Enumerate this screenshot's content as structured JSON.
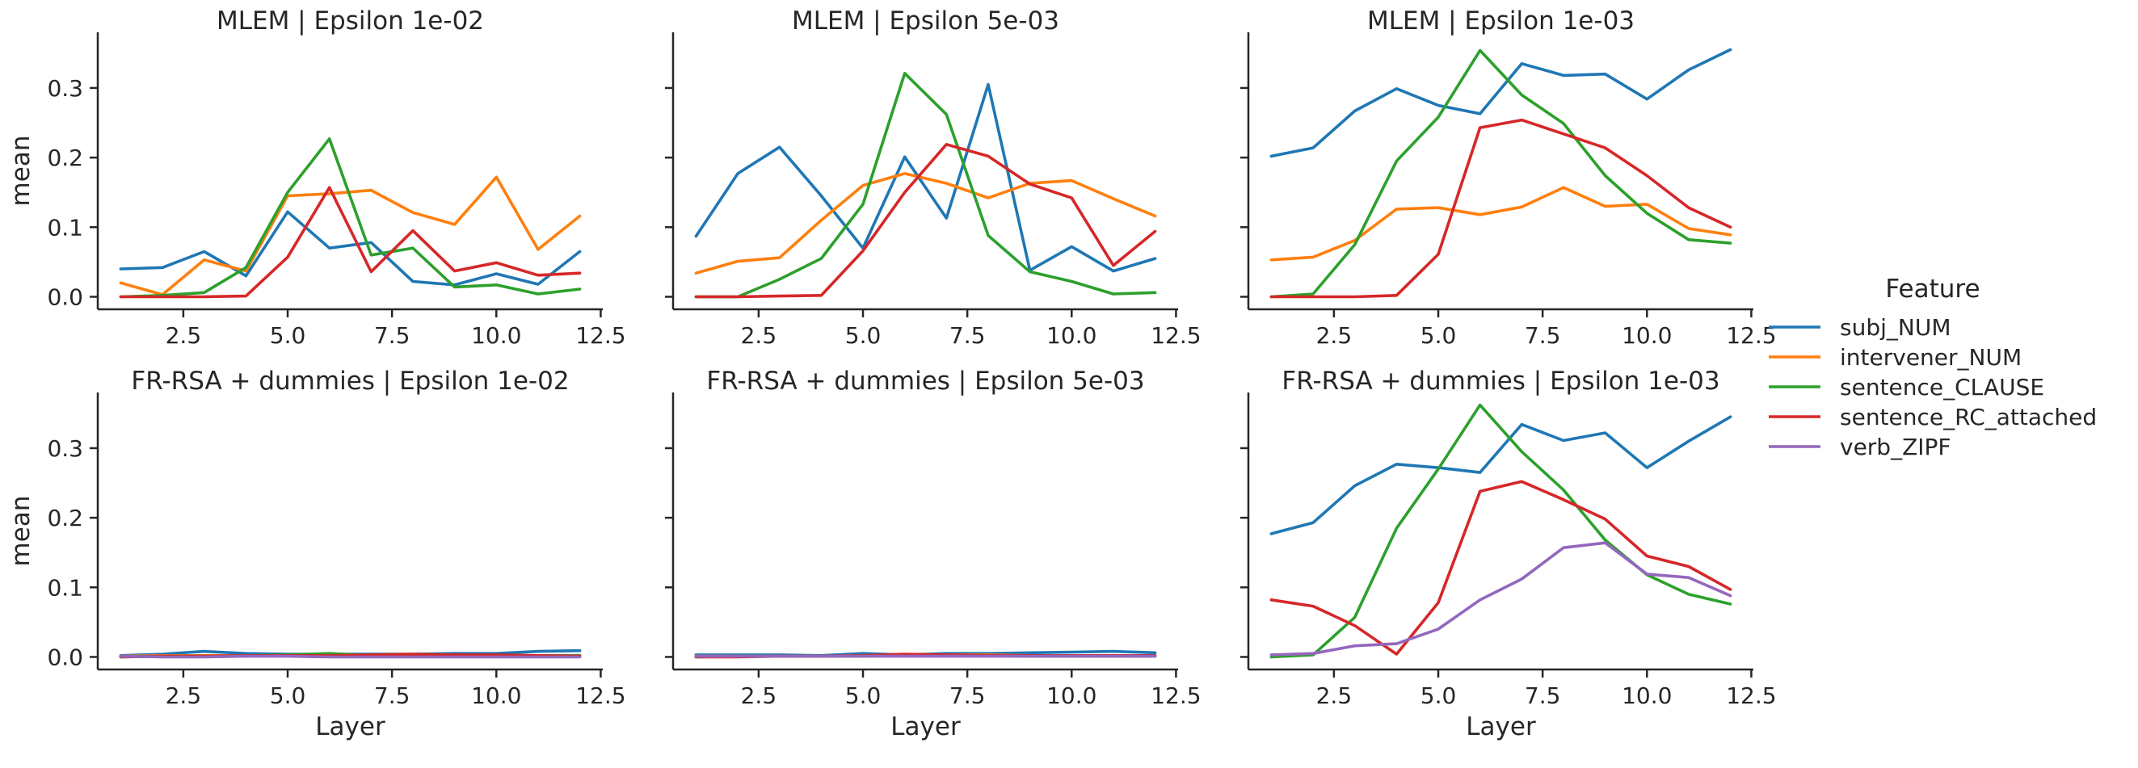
{
  "legend": {
    "title": "Feature",
    "items": [
      {
        "name": "subj_NUM",
        "color": "#1f77b4"
      },
      {
        "name": "intervener_NUM",
        "color": "#ff7f0e"
      },
      {
        "name": "sentence_CLAUSE",
        "color": "#2ca02c"
      },
      {
        "name": "sentence_RC_attached",
        "color": "#d62728"
      },
      {
        "name": "verb_ZIPF",
        "color": "#9467bd"
      }
    ]
  },
  "chart_data": [
    {
      "type": "line",
      "row": 0,
      "col": 0,
      "title": "MLEM | Epsilon 1e-02",
      "xlabel": "",
      "ylabel": "mean",
      "xlim": [
        0.45,
        12.55
      ],
      "ylim": [
        -0.018,
        0.38
      ],
      "xticks": [
        "2.5",
        "5.0",
        "7.5",
        "10.0",
        "12.5"
      ],
      "yticks": [
        "0.0",
        "0.1",
        "0.2",
        "0.3"
      ],
      "x": [
        1,
        2,
        3,
        4,
        5,
        6,
        7,
        8,
        9,
        10,
        11,
        12
      ],
      "series": [
        {
          "name": "subj_NUM",
          "color": "#1f77b4",
          "values": [
            0.04,
            0.042,
            0.065,
            0.03,
            0.122,
            0.07,
            0.078,
            0.022,
            0.017,
            0.033,
            0.018,
            0.065
          ]
        },
        {
          "name": "intervener_NUM",
          "color": "#ff7f0e",
          "values": [
            0.02,
            0.003,
            0.053,
            0.037,
            0.145,
            0.148,
            0.153,
            0.121,
            0.104,
            0.172,
            0.068,
            0.116
          ]
        },
        {
          "name": "sentence_CLAUSE",
          "color": "#2ca02c",
          "values": [
            0.0,
            0.002,
            0.006,
            0.042,
            0.15,
            0.227,
            0.06,
            0.07,
            0.014,
            0.017,
            0.004,
            0.011
          ]
        },
        {
          "name": "sentence_RC_attached",
          "color": "#d62728",
          "values": [
            0.0,
            0.0,
            0.0,
            0.001,
            0.057,
            0.157,
            0.036,
            0.095,
            0.037,
            0.049,
            0.031,
            0.034
          ]
        }
      ]
    },
    {
      "type": "line",
      "row": 0,
      "col": 1,
      "title": "MLEM | Epsilon 5e-03",
      "xlabel": "",
      "ylabel": "",
      "xlim": [
        0.45,
        12.55
      ],
      "ylim": [
        -0.018,
        0.38
      ],
      "xticks": [
        "2.5",
        "5.0",
        "7.5",
        "10.0",
        "12.5"
      ],
      "yticks": [],
      "x": [
        1,
        2,
        3,
        4,
        5,
        6,
        7,
        8,
        9,
        10,
        11,
        12
      ],
      "series": [
        {
          "name": "subj_NUM",
          "color": "#1f77b4",
          "values": [
            0.087,
            0.177,
            0.215,
            0.145,
            0.07,
            0.201,
            0.113,
            0.305,
            0.038,
            0.072,
            0.037,
            0.055
          ]
        },
        {
          "name": "intervener_NUM",
          "color": "#ff7f0e",
          "values": [
            0.034,
            0.051,
            0.056,
            0.11,
            0.16,
            0.177,
            0.163,
            0.142,
            0.163,
            0.167,
            0.141,
            0.116
          ]
        },
        {
          "name": "sentence_CLAUSE",
          "color": "#2ca02c",
          "values": [
            0.0,
            0.0,
            0.025,
            0.055,
            0.133,
            0.321,
            0.262,
            0.088,
            0.036,
            0.022,
            0.004,
            0.006
          ]
        },
        {
          "name": "sentence_RC_attached",
          "color": "#d62728",
          "values": [
            0.0,
            0.0,
            0.001,
            0.002,
            0.066,
            0.15,
            0.219,
            0.202,
            0.162,
            0.142,
            0.045,
            0.094
          ]
        }
      ]
    },
    {
      "type": "line",
      "row": 0,
      "col": 2,
      "title": "MLEM | Epsilon 1e-03",
      "xlabel": "",
      "ylabel": "",
      "xlim": [
        0.45,
        12.55
      ],
      "ylim": [
        -0.018,
        0.38
      ],
      "xticks": [
        "2.5",
        "5.0",
        "7.5",
        "10.0",
        "12.5"
      ],
      "yticks": [],
      "x": [
        1,
        2,
        3,
        4,
        5,
        6,
        7,
        8,
        9,
        10,
        11,
        12
      ],
      "series": [
        {
          "name": "subj_NUM",
          "color": "#1f77b4",
          "values": [
            0.202,
            0.214,
            0.267,
            0.299,
            0.275,
            0.263,
            0.335,
            0.318,
            0.32,
            0.284,
            0.326,
            0.355
          ]
        },
        {
          "name": "intervener_NUM",
          "color": "#ff7f0e",
          "values": [
            0.053,
            0.057,
            0.081,
            0.126,
            0.128,
            0.118,
            0.129,
            0.157,
            0.13,
            0.133,
            0.098,
            0.089
          ]
        },
        {
          "name": "sentence_CLAUSE",
          "color": "#2ca02c",
          "values": [
            0.0,
            0.004,
            0.075,
            0.195,
            0.258,
            0.354,
            0.29,
            0.249,
            0.174,
            0.12,
            0.082,
            0.077
          ]
        },
        {
          "name": "sentence_RC_attached",
          "color": "#d62728",
          "values": [
            0.0,
            0.0,
            0.0,
            0.002,
            0.061,
            0.243,
            0.254,
            0.234,
            0.214,
            0.174,
            0.128,
            0.1
          ]
        }
      ]
    },
    {
      "type": "line",
      "row": 1,
      "col": 0,
      "title": "FR-RSA + dummies | Epsilon 1e-02",
      "xlabel": "Layer",
      "ylabel": "mean",
      "xlim": [
        0.45,
        12.55
      ],
      "ylim": [
        -0.018,
        0.38
      ],
      "xticks": [
        "2.5",
        "5.0",
        "7.5",
        "10.0",
        "12.5"
      ],
      "yticks": [
        "0.0",
        "0.1",
        "0.2",
        "0.3"
      ],
      "x": [
        1,
        2,
        3,
        4,
        5,
        6,
        7,
        8,
        9,
        10,
        11,
        12
      ],
      "series": [
        {
          "name": "subj_NUM",
          "color": "#1f77b4",
          "values": [
            0.002,
            0.004,
            0.008,
            0.005,
            0.004,
            0.004,
            0.004,
            0.004,
            0.005,
            0.005,
            0.008,
            0.009
          ]
        },
        {
          "name": "intervener_NUM",
          "color": "#ff7f0e",
          "values": [
            0.001,
            0.002,
            0.002,
            0.002,
            0.002,
            0.002,
            0.002,
            0.002,
            0.002,
            0.002,
            0.002,
            0.002
          ]
        },
        {
          "name": "sentence_CLAUSE",
          "color": "#2ca02c",
          "values": [
            0.0,
            0.001,
            0.001,
            0.002,
            0.003,
            0.005,
            0.002,
            0.002,
            0.002,
            0.002,
            0.002,
            0.002
          ]
        },
        {
          "name": "sentence_RC_attached",
          "color": "#d62728",
          "values": [
            0.0,
            0.001,
            0.001,
            0.002,
            0.002,
            0.002,
            0.003,
            0.004,
            0.003,
            0.003,
            0.002,
            0.001
          ]
        },
        {
          "name": "verb_ZIPF",
          "color": "#9467bd",
          "values": [
            0.001,
            0.0,
            0.0,
            0.001,
            0.001,
            0.0,
            0.0,
            0.0,
            0.0,
            0.0,
            0.0,
            0.0
          ]
        }
      ]
    },
    {
      "type": "line",
      "row": 1,
      "col": 1,
      "title": "FR-RSA + dummies | Epsilon 5e-03",
      "xlabel": "Layer",
      "ylabel": "",
      "xlim": [
        0.45,
        12.55
      ],
      "ylim": [
        -0.018,
        0.38
      ],
      "xticks": [
        "2.5",
        "5.0",
        "7.5",
        "10.0",
        "12.5"
      ],
      "yticks": [],
      "x": [
        1,
        2,
        3,
        4,
        5,
        6,
        7,
        8,
        9,
        10,
        11,
        12
      ],
      "series": [
        {
          "name": "subj_NUM",
          "color": "#1f77b4",
          "values": [
            0.003,
            0.003,
            0.003,
            0.002,
            0.005,
            0.003,
            0.005,
            0.005,
            0.006,
            0.007,
            0.008,
            0.006
          ]
        },
        {
          "name": "intervener_NUM",
          "color": "#ff7f0e",
          "values": [
            0.001,
            0.001,
            0.001,
            0.001,
            0.002,
            0.003,
            0.003,
            0.003,
            0.002,
            0.002,
            0.002,
            0.002
          ]
        },
        {
          "name": "sentence_CLAUSE",
          "color": "#2ca02c",
          "values": [
            0.0,
            0.001,
            0.001,
            0.001,
            0.001,
            0.002,
            0.002,
            0.002,
            0.001,
            0.001,
            0.001,
            0.001
          ]
        },
        {
          "name": "sentence_RC_attached",
          "color": "#d62728",
          "values": [
            0.0,
            0.0,
            0.001,
            0.001,
            0.002,
            0.004,
            0.003,
            0.002,
            0.002,
            0.002,
            0.002,
            0.002
          ]
        },
        {
          "name": "verb_ZIPF",
          "color": "#9467bd",
          "values": [
            0.001,
            0.001,
            0.001,
            0.001,
            0.001,
            0.001,
            0.001,
            0.001,
            0.001,
            0.001,
            0.001,
            0.001
          ]
        }
      ]
    },
    {
      "type": "line",
      "row": 1,
      "col": 2,
      "title": "FR-RSA + dummies | Epsilon 1e-03",
      "xlabel": "Layer",
      "ylabel": "",
      "xlim": [
        0.45,
        12.55
      ],
      "ylim": [
        -0.018,
        0.38
      ],
      "xticks": [
        "2.5",
        "5.0",
        "7.5",
        "10.0",
        "12.5"
      ],
      "yticks": [],
      "x": [
        1,
        2,
        3,
        4,
        5,
        6,
        7,
        8,
        9,
        10,
        11,
        12
      ],
      "series": [
        {
          "name": "subj_NUM",
          "color": "#1f77b4",
          "values": [
            0.177,
            0.193,
            0.246,
            0.277,
            0.272,
            0.265,
            0.334,
            0.311,
            0.322,
            0.272,
            0.31,
            0.345
          ]
        },
        {
          "name": "sentence_CLAUSE",
          "color": "#2ca02c",
          "values": [
            0.0,
            0.003,
            0.057,
            0.185,
            0.27,
            0.362,
            0.295,
            0.24,
            0.168,
            0.118,
            0.09,
            0.076
          ]
        },
        {
          "name": "sentence_RC_attached",
          "color": "#d62728",
          "values": [
            0.082,
            0.073,
            0.045,
            0.004,
            0.078,
            0.238,
            0.252,
            0.226,
            0.198,
            0.145,
            0.13,
            0.097
          ]
        },
        {
          "name": "verb_ZIPF",
          "color": "#9467bd",
          "values": [
            0.003,
            0.005,
            0.016,
            0.019,
            0.04,
            0.082,
            0.112,
            0.157,
            0.164,
            0.119,
            0.114,
            0.088
          ]
        }
      ]
    }
  ]
}
